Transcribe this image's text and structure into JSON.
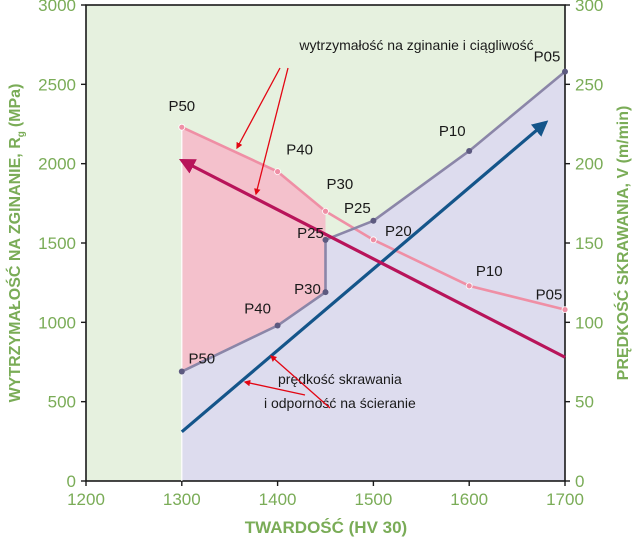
{
  "chart_data": {
    "type": "line",
    "xlabel": "TWARDOŚĆ (HV 30)",
    "ylabel_left_main": "WYTRZYMAŁOŚĆ NA ZGINANIE, R",
    "ylabel_left_sub": "g",
    "ylabel_left_unit": "(MPa)",
    "ylabel_right": "PRĘDKOŚĆ SKRAWANIA, V (m/min)",
    "xlim": [
      1200,
      1700
    ],
    "ylim_left": [
      0,
      3000
    ],
    "ylim_right": [
      0,
      300
    ],
    "x_ticks": [
      "1200",
      "1300",
      "1400",
      "1500",
      "1600",
      "1700"
    ],
    "y_ticks_left": [
      "0",
      "500",
      "1000",
      "1500",
      "2000",
      "2500",
      "3000"
    ],
    "y_ticks_right": [
      "0",
      "50",
      "100",
      "150",
      "200",
      "250",
      "300"
    ],
    "grid": false,
    "colors": {
      "background_outer": "#e6f1df",
      "region_below": "#dddcee",
      "region_pink": "#f4c1cc",
      "upper_line": "#ef8fa5",
      "lower_line": "#8b86a8",
      "cutting_arrow": "#14558a",
      "bending_arrow": "#b8145a",
      "callout_arrows": "#e30613",
      "axis_text": "#7aac57",
      "marker": "#5d5a80"
    },
    "series": [
      {
        "name": "",
        "points": [
          {
            "x": 1300,
            "y": 2230,
            "label": "P50"
          },
          {
            "x": 1400,
            "y": 1950,
            "label": "P40"
          },
          {
            "x": 1450,
            "y": 1700,
            "label": "P30"
          },
          {
            "x": 1500,
            "y": 1520,
            "label": "P20"
          },
          {
            "x": 1600,
            "y": 1230,
            "label": "P10"
          },
          {
            "x": 1700,
            "y": 1080,
            "label": "P05"
          }
        ]
      },
      {
        "name": "",
        "points": [
          {
            "x": 1300,
            "y": 690,
            "label": "P50"
          },
          {
            "x": 1400,
            "y": 980,
            "label": "P40"
          },
          {
            "x": 1450,
            "y": 1190,
            "label": "P30"
          },
          {
            "x": 1450,
            "y": 1520,
            "label": "P25"
          },
          {
            "x": 1500,
            "y": 1640,
            "label": "P25"
          },
          {
            "x": 1600,
            "y": 2080,
            "label": "P10"
          },
          {
            "x": 1700,
            "y": 2580,
            "label": "P05"
          }
        ]
      }
    ],
    "trend_arrows": [
      {
        "from": {
          "x": 1300,
          "y": 310
        },
        "to": {
          "x": 1680,
          "y": 2260
        }
      },
      {
        "from": {
          "x": 1700,
          "y": 780
        },
        "to": {
          "x": 1300,
          "y": 2020
        }
      }
    ],
    "annotations": [
      {
        "text": "wytrzymałość na zginanie i ciągliwość",
        "x": 1545,
        "y": 2715
      },
      {
        "text": "prędkość skrawania",
        "x": 1465,
        "y": 610
      },
      {
        "text": "i odporność na ścieranie",
        "x": 1465,
        "y": 460
      },
      {
        "text": "P30",
        "x": 1465,
        "y": 1840
      }
    ]
  }
}
